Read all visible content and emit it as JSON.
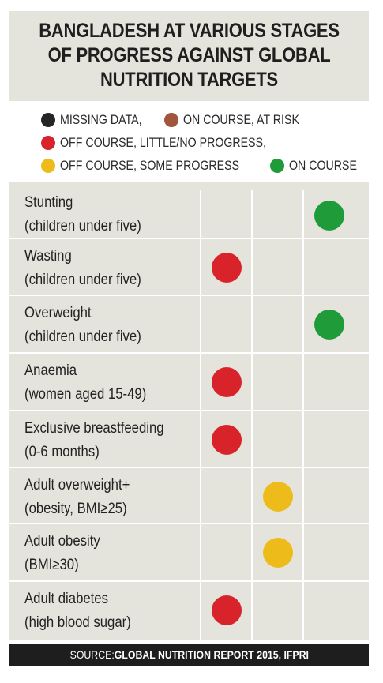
{
  "title": {
    "lines": [
      "BANGLADESH AT VARIOUS STAGES",
      "OF PROGRESS AGAINST GLOBAL",
      "NUTRITION TARGETS"
    ]
  },
  "legend": [
    {
      "label": "MISSING DATA,",
      "color": "#262626"
    },
    {
      "label": "ON COURSE, AT RISK",
      "color": "#a0553c"
    },
    {
      "label": "OFF COURSE, LITTLE/NO PROGRESS,",
      "color": "#d8232b"
    },
    {
      "label": "OFF COURSE, SOME PROGRESS",
      "color": "#eebc1a"
    },
    {
      "label": "ON COURSE",
      "color": "#1f9b3a"
    }
  ],
  "rows": [
    {
      "line1": "Stunting",
      "line2": "(children under five)",
      "status": "ON COURSE",
      "color": "#1f9b3a"
    },
    {
      "line1": "Wasting",
      "line2": "(children under five)",
      "status": "OFF COURSE, LITTLE/NO PROGRESS",
      "color": "#d8232b"
    },
    {
      "line1": "Overweight",
      "line2": "(children under five)",
      "status": "ON COURSE",
      "color": "#1f9b3a"
    },
    {
      "line1": "Anaemia",
      "line2": "(women aged 15-49)",
      "status": "OFF COURSE, LITTLE/NO PROGRESS",
      "color": "#d8232b"
    },
    {
      "line1": "Exclusive breastfeeding",
      "line2": "(0-6 months)",
      "status": "OFF COURSE, LITTLE/NO PROGRESS",
      "color": "#d8232b"
    },
    {
      "line1": "Adult overweight+",
      "line2": "(obesity, BMI≥25)",
      "status": "OFF COURSE, SOME PROGRESS",
      "color": "#eebc1a"
    },
    {
      "line1": "Adult obesity",
      "line2": "(BMI≥30)",
      "status": "OFF COURSE, SOME PROGRESS",
      "color": "#eebc1a"
    },
    {
      "line1": "Adult diabetes",
      "line2": "(high blood sugar)",
      "status": "OFF COURSE, LITTLE/NO PROGRESS",
      "color": "#d8232b"
    }
  ],
  "source": {
    "prefix": "SOURCE: ",
    "text": "GLOBAL NUTRITION REPORT 2015, IFPRI"
  }
}
